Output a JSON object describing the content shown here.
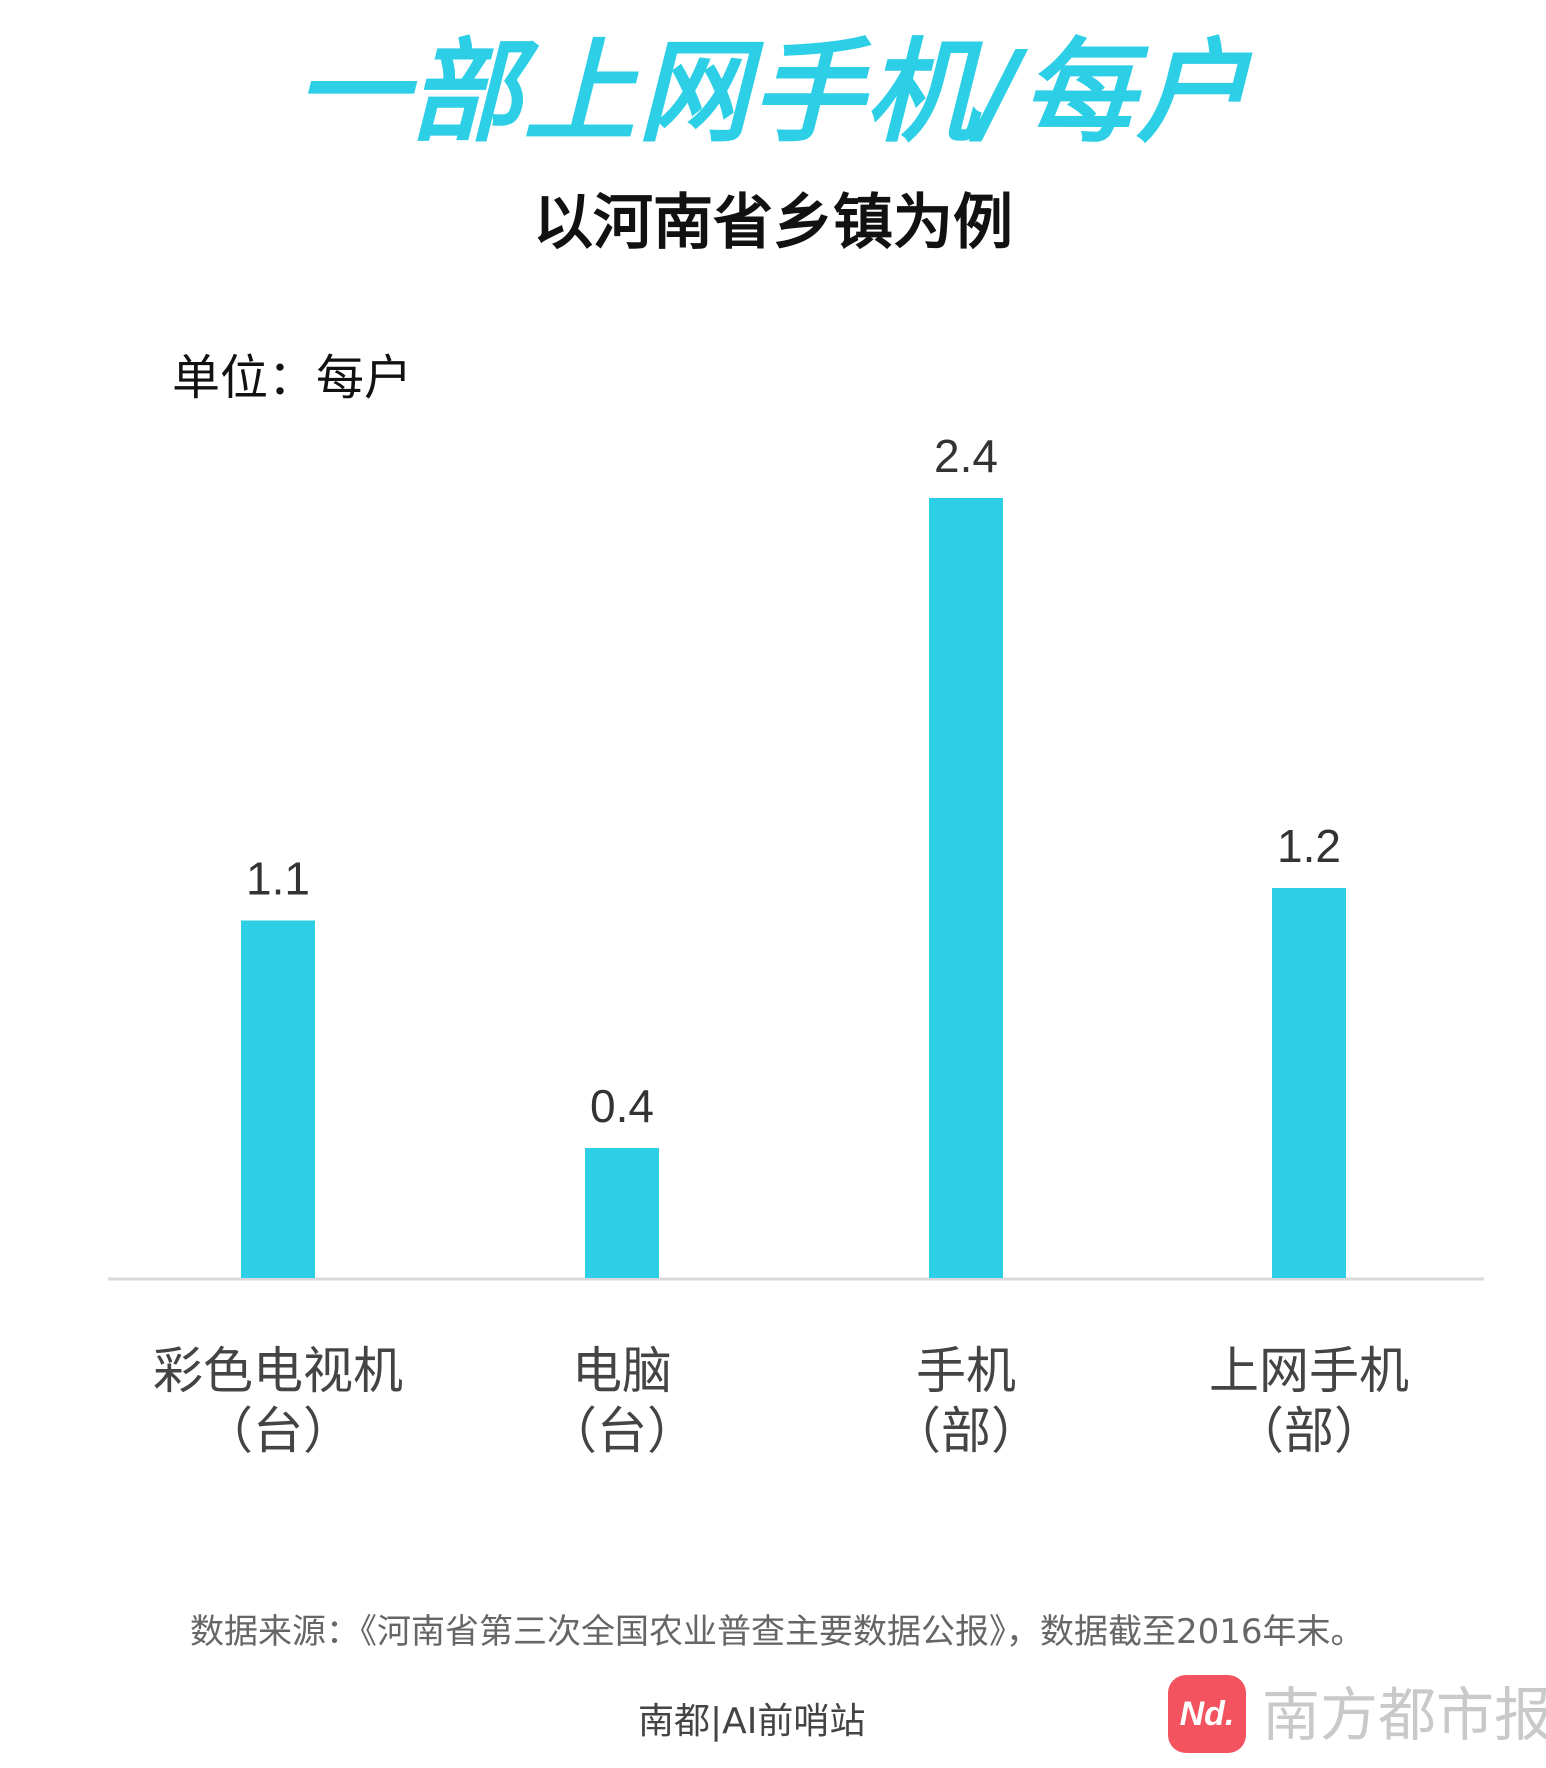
{
  "title": "一部上网手机/每户",
  "subtitle": "以河南省乡镇为例",
  "unit_label": "单位：每户",
  "source": "数据来源：《河南省第三次全国农业普查主要数据公报》，数据截至2016年末。",
  "byline": "南都|AI前哨站",
  "logo": {
    "badge": "Nd.",
    "text": "南方都市报"
  },
  "colors": {
    "bar": "#2ccfe6",
    "axis": "#d9d9d9",
    "title": "#2ccfe6"
  },
  "chart_data": {
    "type": "bar",
    "categories": [
      "彩色电视机",
      "电脑",
      "手机",
      "上网手机"
    ],
    "category_units": [
      "（台）",
      "（台）",
      "（部）",
      "（部）"
    ],
    "values": [
      1.1,
      0.4,
      2.4,
      1.2
    ],
    "value_labels": [
      "1.1",
      "0.4",
      "2.4",
      "1.2"
    ],
    "title": "一部上网手机/每户",
    "subtitle": "以河南省乡镇为例",
    "xlabel": "",
    "ylabel": "",
    "ylim": [
      0,
      2.4
    ],
    "grid": false,
    "legend": "none"
  }
}
